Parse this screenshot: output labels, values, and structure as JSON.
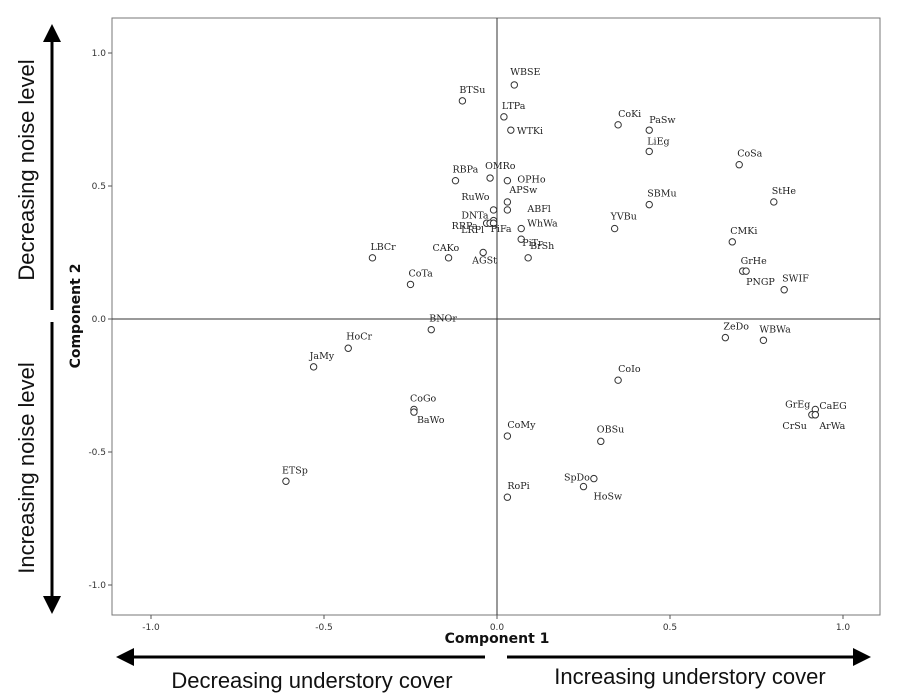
{
  "chart_data": {
    "type": "scatter",
    "xlabel": "Component 1",
    "ylabel": "Component 2",
    "xlim": [
      -1.1,
      1.1
    ],
    "ylim": [
      -1.1,
      1.1
    ],
    "xticks": [
      -1.0,
      -0.5,
      0.0,
      0.5,
      1.0
    ],
    "yticks": [
      -1.0,
      -0.5,
      0.0,
      0.5,
      1.0
    ],
    "xtick_labels": [
      "-1.0",
      "-0.5",
      "0.0",
      "0.5",
      "1.0"
    ],
    "ytick_labels": [
      "-1.0",
      "-0.5",
      "0.0",
      "0.5",
      "1.0"
    ],
    "reference_lines": {
      "x": 0,
      "y": 0
    },
    "grid": false,
    "points": [
      {
        "label": "WBSE",
        "x": 0.05,
        "y": 0.88
      },
      {
        "label": "BTSu",
        "x": -0.1,
        "y": 0.82
      },
      {
        "label": "LTPa",
        "x": 0.02,
        "y": 0.76
      },
      {
        "label": "WTKi",
        "x": 0.04,
        "y": 0.71
      },
      {
        "label": "CoKi",
        "x": 0.35,
        "y": 0.73
      },
      {
        "label": "PaSw",
        "x": 0.44,
        "y": 0.71
      },
      {
        "label": "LiEg",
        "x": 0.44,
        "y": 0.63
      },
      {
        "label": "CoSa",
        "x": 0.7,
        "y": 0.58
      },
      {
        "label": "RBPa",
        "x": -0.12,
        "y": 0.52
      },
      {
        "label": "OMRo",
        "x": -0.02,
        "y": 0.53
      },
      {
        "label": "OPHo",
        "x": 0.03,
        "y": 0.52
      },
      {
        "label": "APSw",
        "x": 0.03,
        "y": 0.44
      },
      {
        "label": "ABFl",
        "x": 0.03,
        "y": 0.41
      },
      {
        "label": "RuWo",
        "x": -0.01,
        "y": 0.41
      },
      {
        "label": "DNTa",
        "x": -0.01,
        "y": 0.37
      },
      {
        "label": "RRPa",
        "x": -0.03,
        "y": 0.36
      },
      {
        "label": "LRPl",
        "x": -0.02,
        "y": 0.36
      },
      {
        "label": "PiFa",
        "x": -0.01,
        "y": 0.36
      },
      {
        "label": "WhWa",
        "x": 0.07,
        "y": 0.34
      },
      {
        "label": "PiTr",
        "x": 0.07,
        "y": 0.3
      },
      {
        "label": "SBMu",
        "x": 0.44,
        "y": 0.43
      },
      {
        "label": "StHe",
        "x": 0.8,
        "y": 0.44
      },
      {
        "label": "YVBu",
        "x": 0.34,
        "y": 0.34
      },
      {
        "label": "BrSh",
        "x": 0.09,
        "y": 0.23
      },
      {
        "label": "AGSt",
        "x": -0.04,
        "y": 0.25
      },
      {
        "label": "CAKo",
        "x": -0.14,
        "y": 0.23
      },
      {
        "label": "LBCr",
        "x": -0.36,
        "y": 0.23
      },
      {
        "label": "CMKi",
        "x": 0.68,
        "y": 0.29
      },
      {
        "label": "GrHe",
        "x": 0.71,
        "y": 0.18
      },
      {
        "label": "PNGP",
        "x": 0.72,
        "y": 0.18
      },
      {
        "label": "SWIF",
        "x": 0.83,
        "y": 0.11
      },
      {
        "label": "CoTa",
        "x": -0.25,
        "y": 0.13
      },
      {
        "label": "BNOr",
        "x": -0.19,
        "y": -0.04
      },
      {
        "label": "HoCr",
        "x": -0.43,
        "y": -0.11
      },
      {
        "label": "JaMy",
        "x": -0.53,
        "y": -0.18
      },
      {
        "label": "ZeDo",
        "x": 0.66,
        "y": -0.07
      },
      {
        "label": "WBWa",
        "x": 0.77,
        "y": -0.08
      },
      {
        "label": "CoIo",
        "x": 0.35,
        "y": -0.23
      },
      {
        "label": "CoGo",
        "x": -0.24,
        "y": -0.34
      },
      {
        "label": "BaWo",
        "x": -0.24,
        "y": -0.35
      },
      {
        "label": "GrEg",
        "x": 0.92,
        "y": -0.34
      },
      {
        "label": "CaEG",
        "x": 0.92,
        "y": -0.36
      },
      {
        "label": "CrSu",
        "x": 0.91,
        "y": -0.36
      },
      {
        "label": "ArWa",
        "x": 0.92,
        "y": -0.36
      },
      {
        "label": "CoMy",
        "x": 0.03,
        "y": -0.44
      },
      {
        "label": "OBSu",
        "x": 0.3,
        "y": -0.46
      },
      {
        "label": "ETSp",
        "x": -0.61,
        "y": -0.61
      },
      {
        "label": "SpDo",
        "x": 0.28,
        "y": -0.6
      },
      {
        "label": "HoSw",
        "x": 0.25,
        "y": -0.63
      },
      {
        "label": "RoPi",
        "x": 0.03,
        "y": -0.67
      }
    ]
  },
  "annotations": {
    "top_left": "Decreasing noise level",
    "bottom_left": "Increasing noise level",
    "bottom_left_arrow": "Decreasing understory cover",
    "bottom_right_arrow": "Increasing understory cover"
  }
}
